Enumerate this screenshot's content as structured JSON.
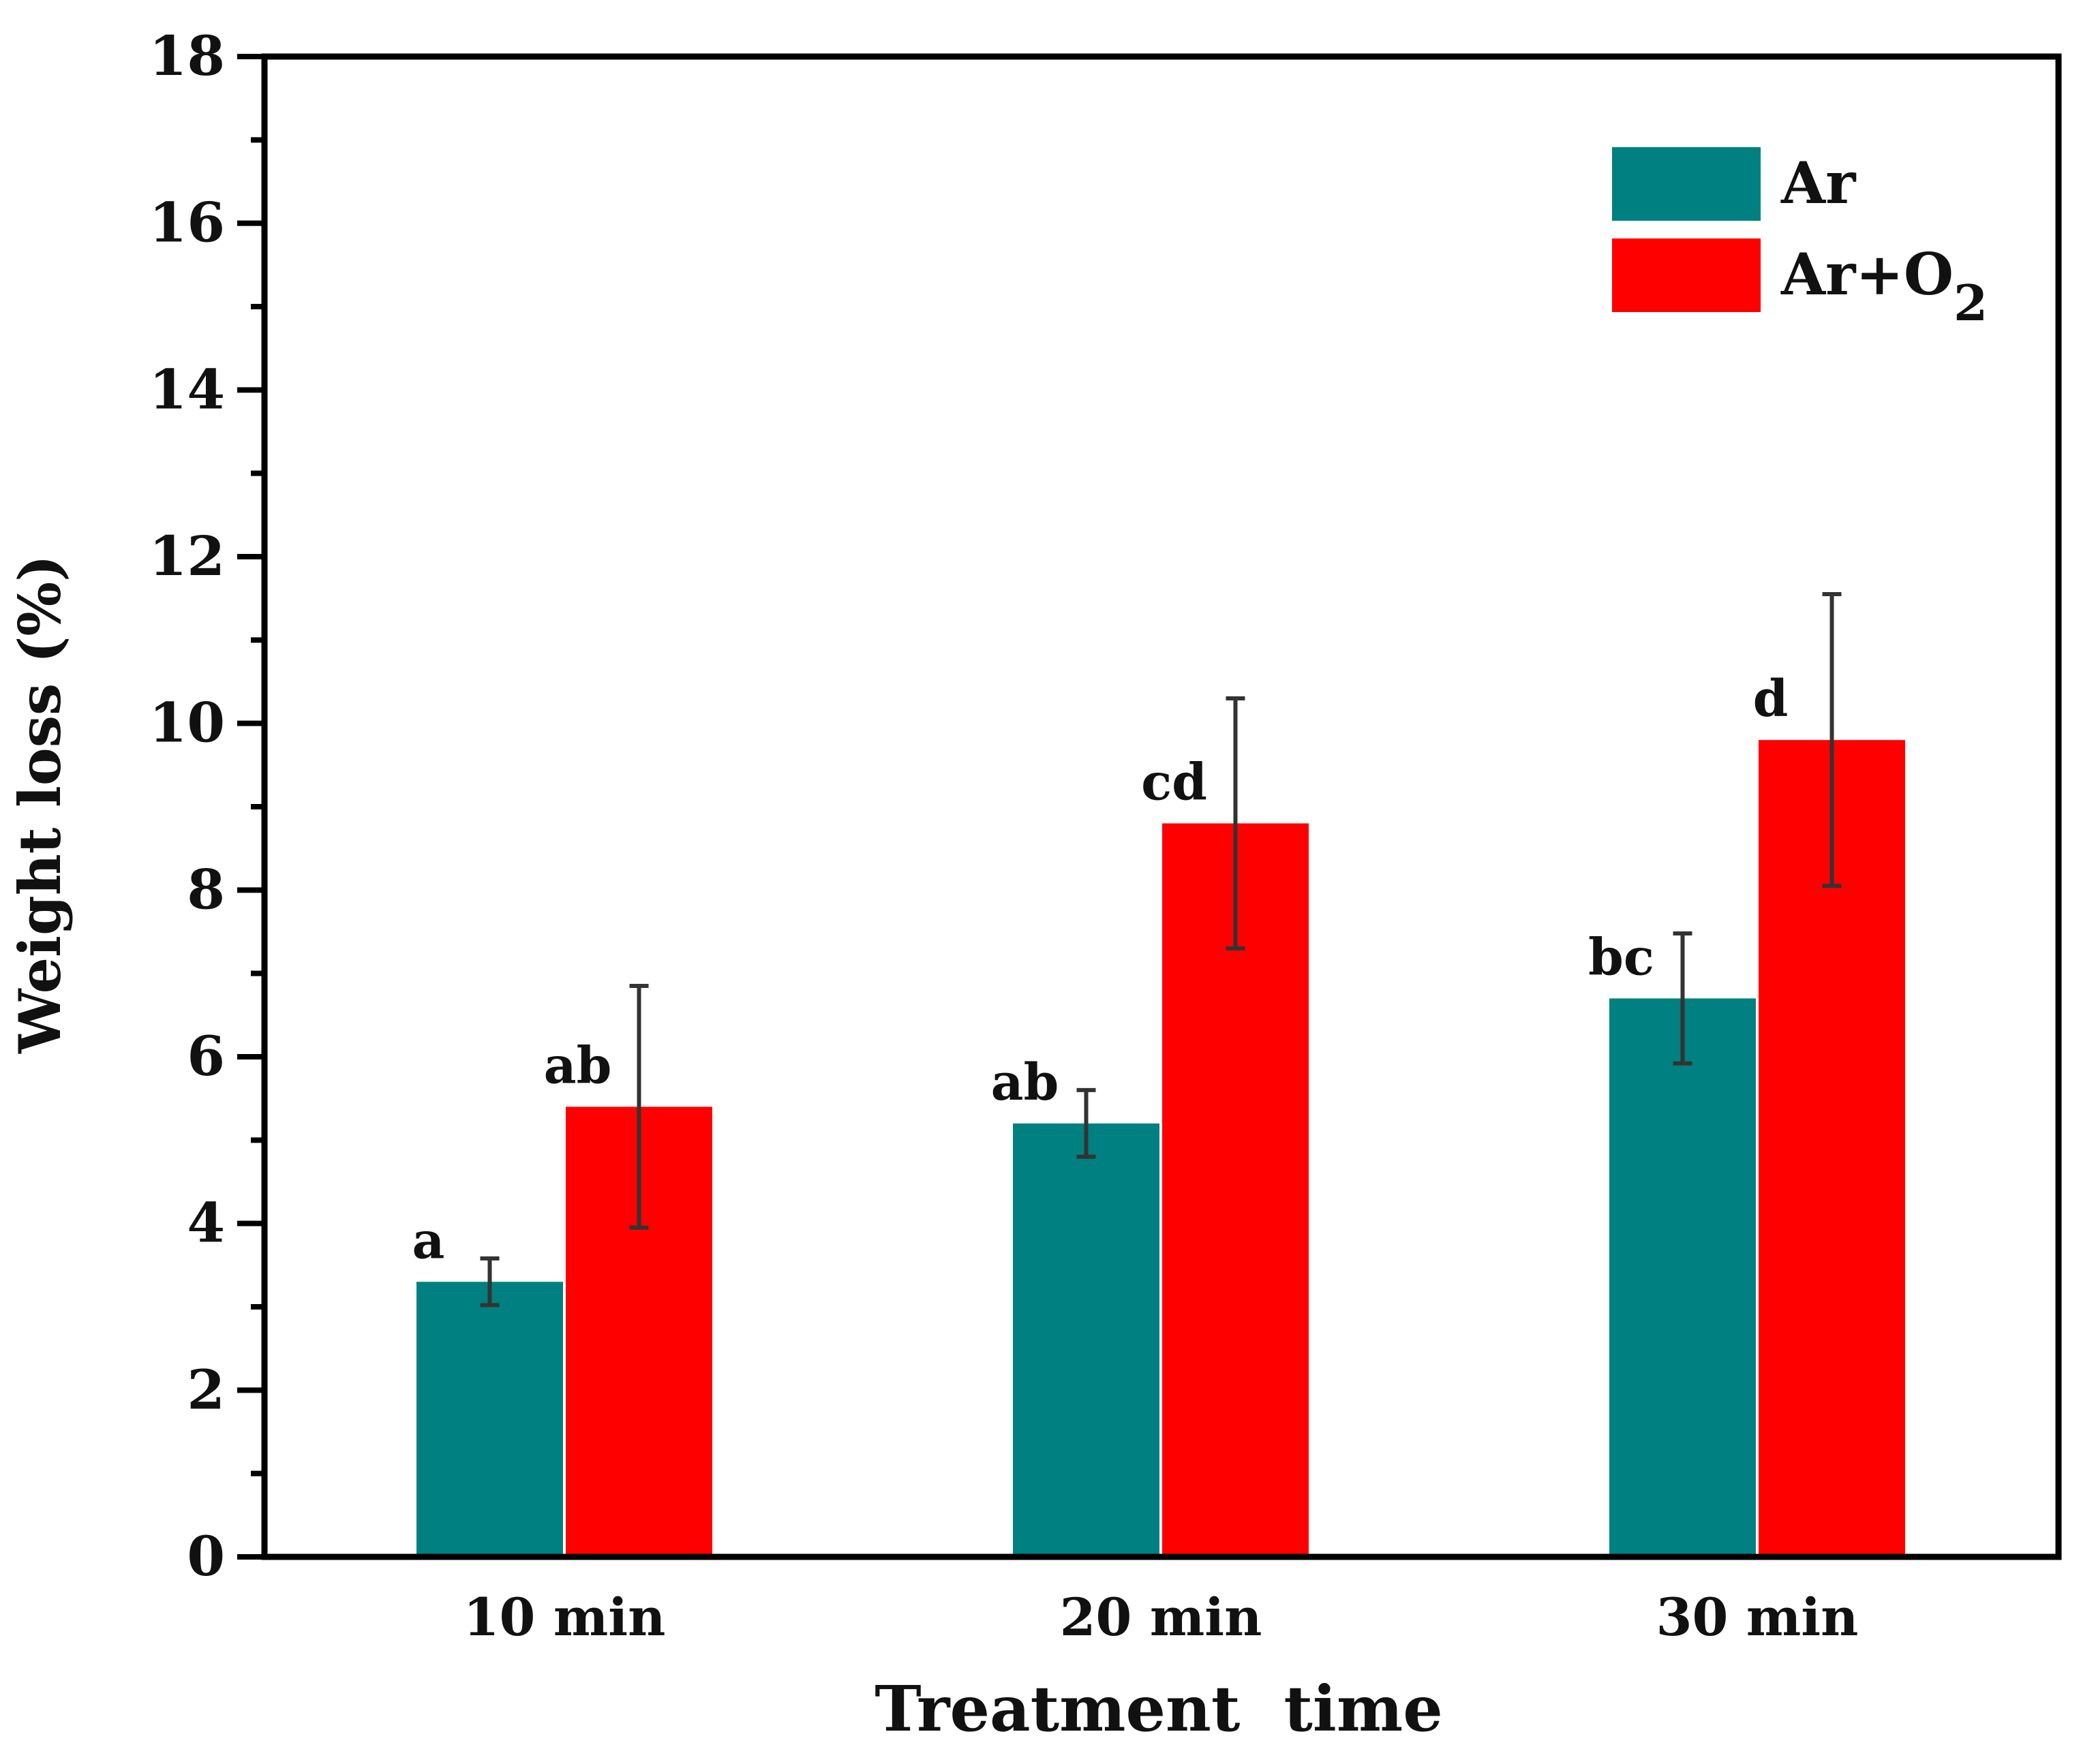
{
  "chart_data": {
    "type": "bar",
    "title": "",
    "xlabel": "Treatment  time",
    "ylabel": "Weight loss (%)",
    "ylim": [
      0,
      18
    ],
    "yticks": [
      0,
      2,
      4,
      6,
      8,
      10,
      12,
      14,
      16,
      18
    ],
    "y_minor_step": 1,
    "grid": false,
    "legend_position": "top-right",
    "categories": [
      "10 min",
      "20 min",
      "30 min"
    ],
    "series": [
      {
        "name": "Ar",
        "legend_label": "Ar",
        "color": "#008080",
        "values": [
          3.3,
          5.2,
          6.7
        ],
        "errors": [
          0.28,
          0.4,
          0.78
        ],
        "labels": [
          "a",
          "ab",
          "bc"
        ]
      },
      {
        "name": "Ar+O2",
        "legend_label": "Ar+O",
        "legend_subscript": "2",
        "color": "#ff0000",
        "values": [
          5.4,
          8.8,
          9.8
        ],
        "errors": [
          1.45,
          1.5,
          1.75
        ],
        "labels": [
          "ab",
          "cd",
          "d"
        ]
      }
    ],
    "error_bar_color": "#333333",
    "axis_color": "#000000"
  }
}
